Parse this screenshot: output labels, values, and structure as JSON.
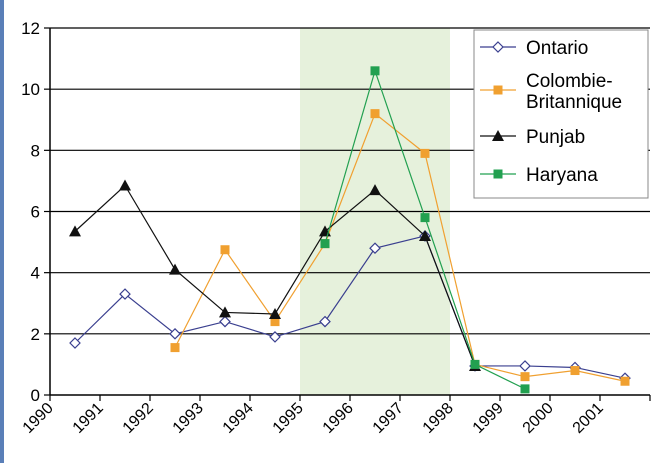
{
  "chart_data": {
    "type": "line",
    "title": "",
    "xlabel": "",
    "ylabel": "",
    "ylim": [
      0,
      12
    ],
    "y_ticks": [
      "0",
      "2",
      "4",
      "6",
      "8",
      "10",
      "12"
    ],
    "x_ticks": [
      "1990",
      "1991",
      "1992",
      "1993",
      "1994",
      "1995",
      "1996",
      "1997",
      "1998",
      "1999",
      "2000",
      "2001"
    ],
    "xlim": [
      1990,
      2002
    ],
    "grid": "horizontal",
    "shaded_region": {
      "from": 1995,
      "to": 1998,
      "color": "#e6f1dc"
    },
    "legend_position": "top-right",
    "series": [
      {
        "name": "Ontario",
        "marker": "diamond-open",
        "color": "#3a3f8f",
        "x": [
          1990.5,
          1991.5,
          1992.5,
          1993.5,
          1994.5,
          1995.5,
          1996.5,
          1997.5,
          1998.5,
          1999.5,
          2000.5,
          2001.5
        ],
        "y": [
          1.7,
          3.3,
          2.0,
          2.4,
          1.9,
          2.4,
          4.8,
          5.2,
          0.95,
          0.95,
          0.9,
          0.55
        ]
      },
      {
        "name": "Colombie-Britannique",
        "legend_lines": [
          "Colombie-",
          "Britannique"
        ],
        "marker": "square",
        "color": "#f0a030",
        "x": [
          1992.5,
          1993.5,
          1994.5,
          1995.5,
          1996.5,
          1997.5,
          1998.5,
          1999.5,
          2000.5,
          2001.5
        ],
        "y": [
          1.55,
          4.75,
          2.4,
          4.95,
          9.2,
          7.9,
          1.0,
          0.6,
          0.8,
          0.45
        ]
      },
      {
        "name": "Punjab",
        "marker": "triangle",
        "color": "#111111",
        "x": [
          1990.5,
          1991.5,
          1992.5,
          1993.5,
          1994.5,
          1995.5,
          1996.5,
          1997.5,
          1998.5
        ],
        "y": [
          5.35,
          6.85,
          4.1,
          2.7,
          2.65,
          5.35,
          6.7,
          5.2,
          0.95
        ]
      },
      {
        "name": "Haryana",
        "marker": "square",
        "color": "#22a050",
        "x": [
          1995.5,
          1996.5,
          1997.5,
          1998.5,
          1999.5
        ],
        "y": [
          4.95,
          10.6,
          5.8,
          1.0,
          0.2
        ]
      }
    ]
  }
}
